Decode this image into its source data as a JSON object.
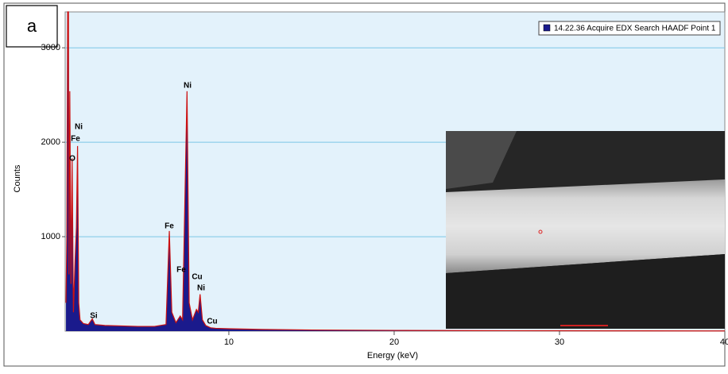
{
  "chart_data": {
    "type": "line",
    "panel_label": "a",
    "x_label": "Energy (keV)",
    "y_label": "Counts",
    "x": [
      0.15,
      0.2,
      0.25,
      0.3,
      0.33,
      0.38,
      0.45,
      0.52,
      0.6,
      0.7,
      0.78,
      0.85,
      0.92,
      1.0,
      1.2,
      1.5,
      1.74,
      1.9,
      2.5,
      3.5,
      4.5,
      5.5,
      6.2,
      6.4,
      6.55,
      6.8,
      7.06,
      7.2,
      7.47,
      7.6,
      7.8,
      8.04,
      8.15,
      8.26,
      8.4,
      8.6,
      8.9,
      9.2,
      10,
      12,
      15,
      20,
      25,
      30,
      35,
      40
    ],
    "series": [
      {
        "name": "14.22.36 Acquire EDX Search HAADF Point 1",
        "color": "#1a1a8c",
        "line_color": "#cc1111",
        "values": [
          300,
          1000,
          3380,
          3380,
          600,
          2540,
          500,
          1830,
          200,
          750,
          1100,
          1960,
          300,
          120,
          80,
          70,
          130,
          70,
          60,
          55,
          50,
          50,
          70,
          1060,
          200,
          90,
          160,
          120,
          2540,
          300,
          120,
          230,
          200,
          390,
          120,
          60,
          35,
          30,
          25,
          18,
          12,
          8,
          5,
          4,
          3,
          2
        ]
      }
    ],
    "annotations": [
      "Ni",
      "Fe",
      "O",
      "Ni",
      "Fe",
      "Fe",
      "Cu",
      "Ni",
      "Si",
      "Cu"
    ],
    "xlim": [
      0.1,
      40
    ],
    "ylim": [
      0,
      3380
    ],
    "xticks": [
      10,
      20,
      30,
      40
    ],
    "yticks": [
      1000,
      2000,
      3000
    ],
    "grid": true
  }
}
